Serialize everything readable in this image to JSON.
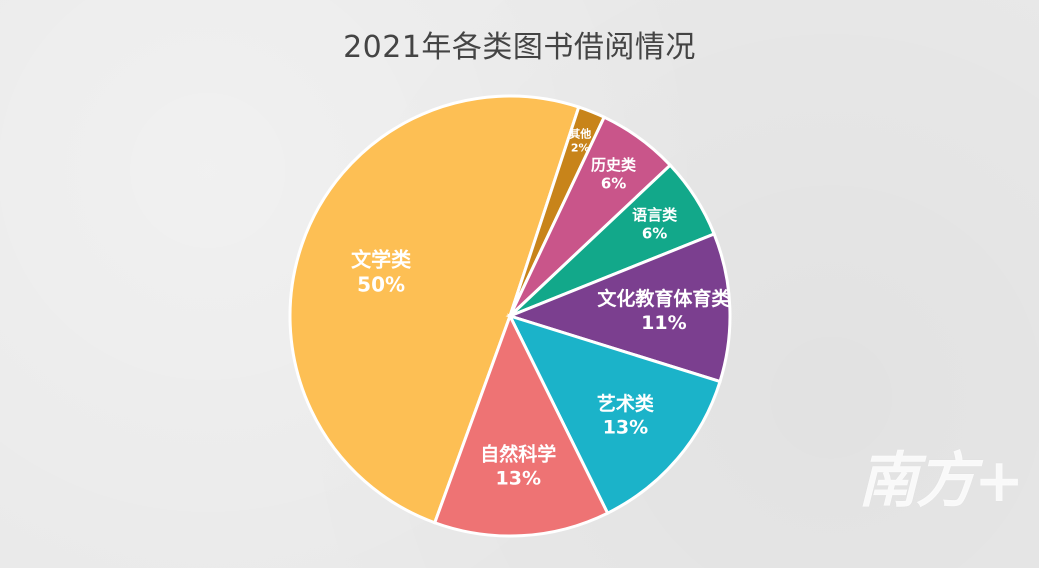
{
  "chart_data": {
    "type": "pie",
    "title": "2021年各类图书借阅情况",
    "slices": [
      {
        "label": "文学类",
        "percent_label": "50%",
        "value": 50,
        "color": "#FDBF54"
      },
      {
        "label": "其他",
        "percent_label": "2%",
        "value": 2,
        "color": "#C8841A"
      },
      {
        "label": "历史类",
        "percent_label": "6%",
        "value": 6,
        "color": "#C9558A"
      },
      {
        "label": "语言类",
        "percent_label": "6%",
        "value": 6,
        "color": "#12A88A"
      },
      {
        "label": "文化教育体育类",
        "percent_label": "11%",
        "value": 11,
        "color": "#7B3F8F"
      },
      {
        "label": "艺术类",
        "percent_label": "13%",
        "value": 13,
        "color": "#1BB3C9"
      },
      {
        "label": "自然科学",
        "percent_label": "13%",
        "value": 13,
        "color": "#EE7374"
      }
    ]
  },
  "watermark": "南方+"
}
